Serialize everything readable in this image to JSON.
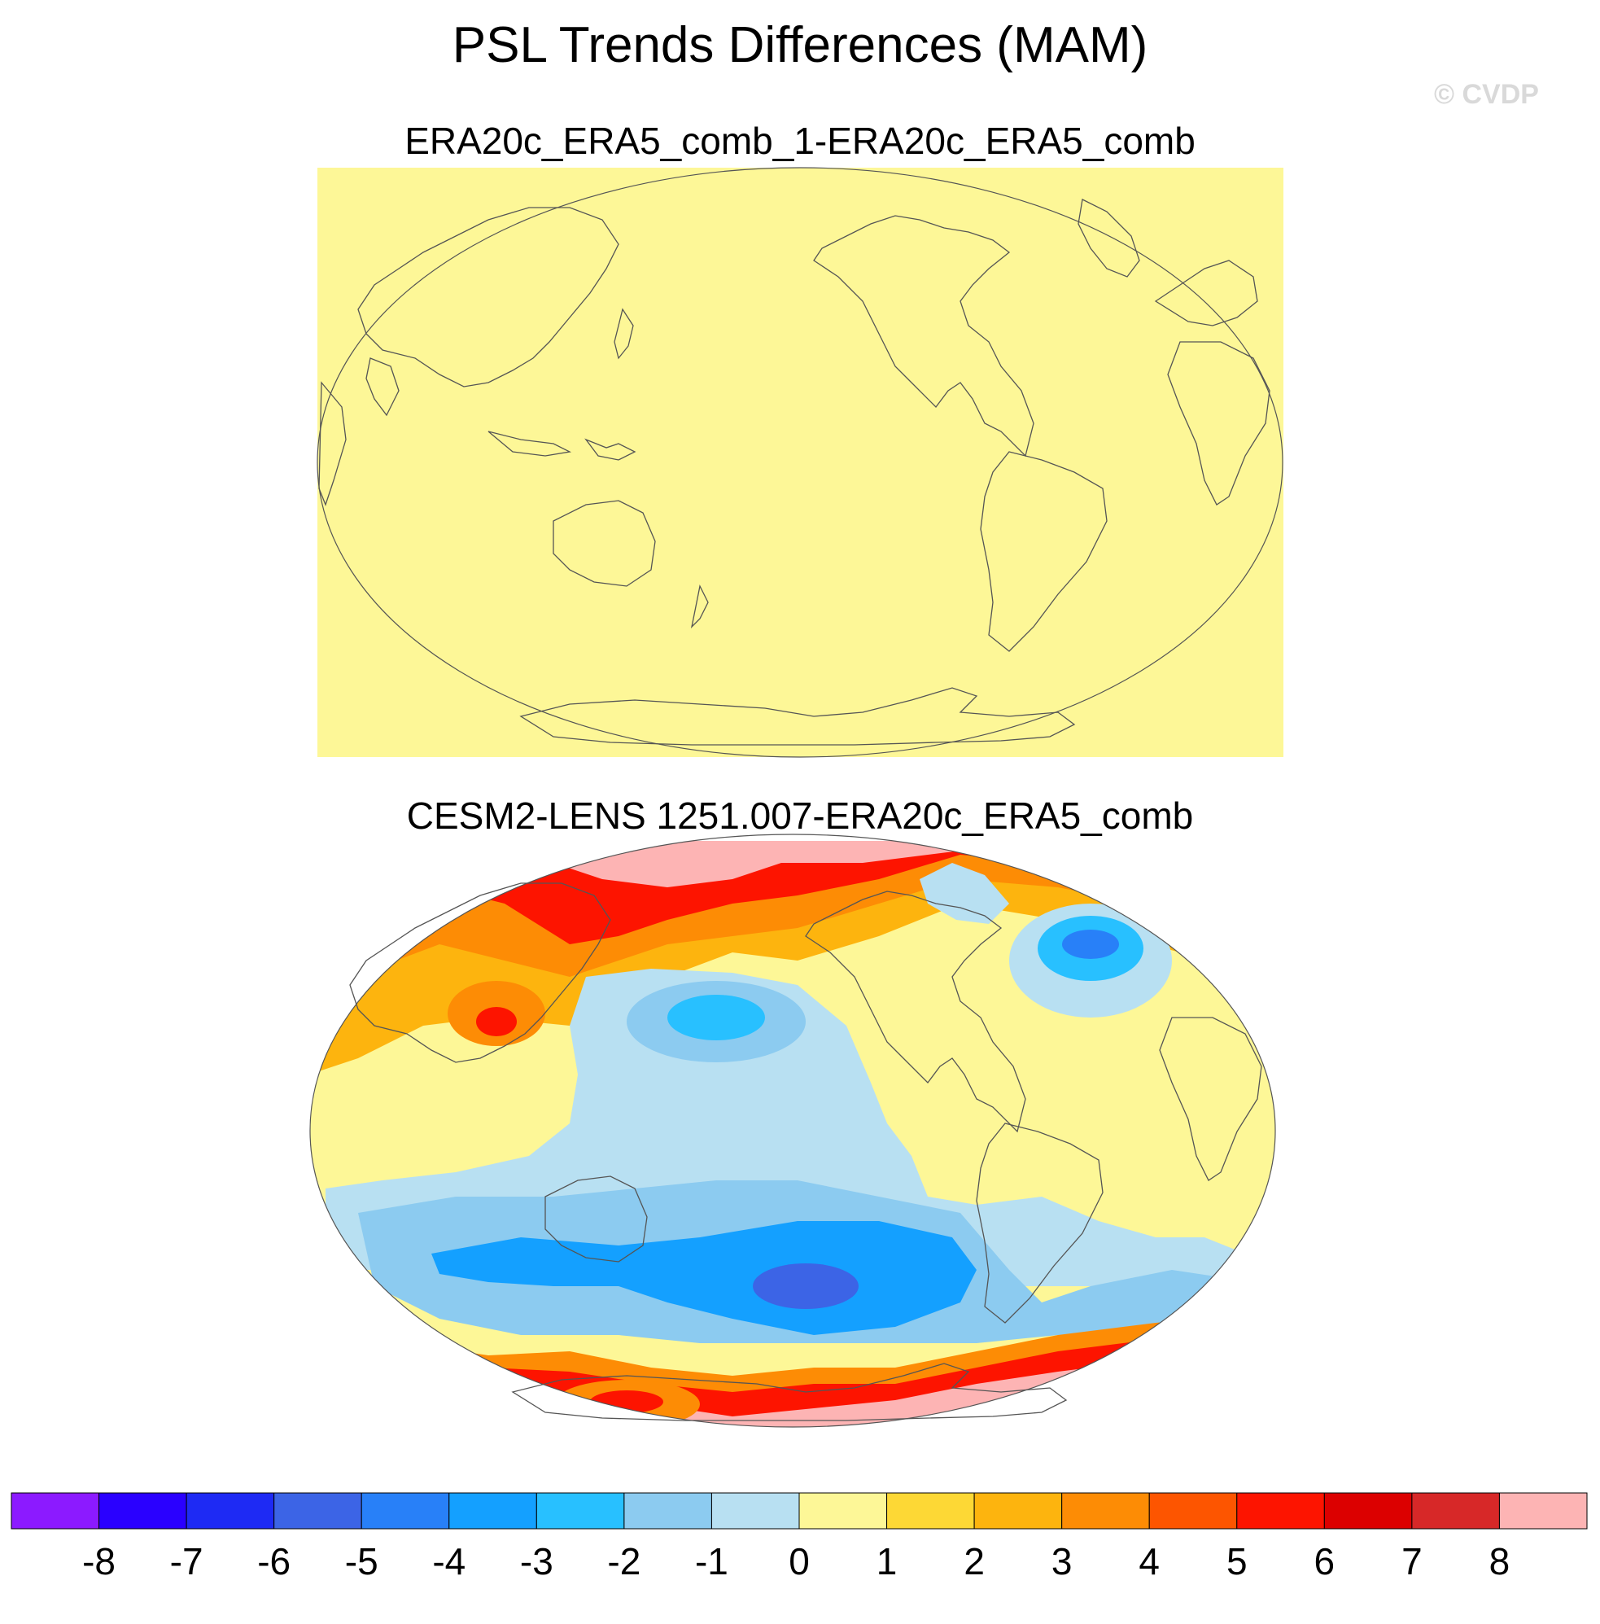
{
  "title": "PSL Trends Differences (MAM)",
  "watermark": "© CVDP",
  "panels": [
    {
      "title": "ERA20c_ERA5_comb_1-ERA20c_ERA5_comb",
      "fill": "#fdf797"
    },
    {
      "title": "CESM2-LENS 1251.007-ERA20c_ERA5_comb"
    }
  ],
  "colorbar": {
    "labels": [
      "-8",
      "-7",
      "-6",
      "-5",
      "-4",
      "-3",
      "-2",
      "-1",
      "0",
      "1",
      "2",
      "3",
      "4",
      "5",
      "6",
      "7",
      "8"
    ],
    "colors": [
      "#8c1aff",
      "#2a00ff",
      "#1e2af4",
      "#3c64e6",
      "#2880f8",
      "#14a0ff",
      "#28c0ff",
      "#8ccbf0",
      "#b8e0f2",
      "#fdf797",
      "#fdd835",
      "#fdb40e",
      "#fd8c05",
      "#fd5500",
      "#fd1400",
      "#dc0000",
      "#d72828",
      "#fdb4b4"
    ]
  },
  "map_colors": {
    "ocean_neutral_pos": "#fdf797",
    "neg1": "#b8e0f2",
    "neg2": "#8ccbf0",
    "neg3": "#28c0ff",
    "neg4": "#14a0ff",
    "neg5": "#2880f8",
    "neg6": "#3c64e6",
    "pos2": "#fdd835",
    "pos3": "#fdb40e",
    "pos4": "#fd8c05",
    "pos5": "#fd5500",
    "pos6": "#fd1400",
    "pos7": "#dc0000",
    "pos8": "#fdb4b4",
    "coast": "#555555"
  }
}
